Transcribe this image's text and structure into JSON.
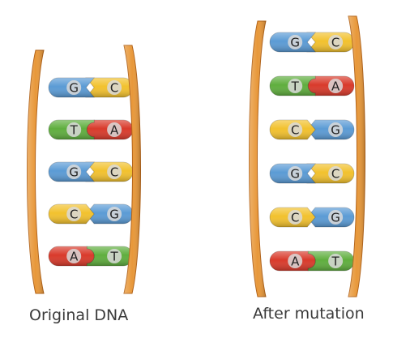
{
  "colors": {
    "G": "#5b9bd5",
    "C": "#f2c12e",
    "T": "#5fae3e",
    "A": "#d93a2b",
    "backbone": "#e8983a",
    "backbone_dark": "#b3641a",
    "letter_fill": "#d9d9d9",
    "letter_text": "#222222"
  },
  "ladders": [
    {
      "id": "original",
      "caption": "Original DNA",
      "pairs": [
        {
          "left": "G",
          "right": "C"
        },
        {
          "left": "T",
          "right": "A"
        },
        {
          "left": "G",
          "right": "C"
        },
        {
          "left": "C",
          "right": "G"
        },
        {
          "left": "A",
          "right": "T"
        }
      ]
    },
    {
      "id": "mutated",
      "caption": "After mutation",
      "pairs": [
        {
          "left": "G",
          "right": "C"
        },
        {
          "left": "T",
          "right": "A"
        },
        {
          "left": "C",
          "right": "G"
        },
        {
          "left": "G",
          "right": "C"
        },
        {
          "left": "C",
          "right": "G"
        },
        {
          "left": "A",
          "right": "T"
        }
      ]
    }
  ]
}
